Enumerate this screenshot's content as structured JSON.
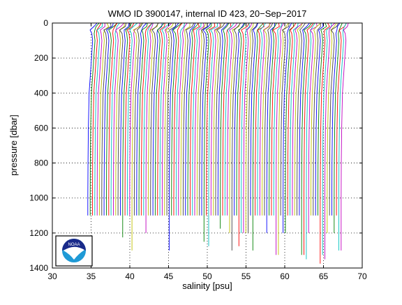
{
  "chart_data": {
    "type": "line",
    "title": "WMO ID 3900147, internal ID 423, 20−Sep−2017",
    "xlabel": "salinity [psu]",
    "ylabel": "pressure [dbar]",
    "xlim": [
      30,
      70
    ],
    "ylim": [
      1400,
      0
    ],
    "y_reversed": true,
    "grid": true,
    "xticks": [
      30,
      35,
      40,
      45,
      50,
      55,
      60,
      65,
      70
    ],
    "yticks": [
      0,
      200,
      400,
      600,
      800,
      1000,
      1200,
      1400
    ],
    "profiles": {
      "count": 110,
      "x_start": 35.0,
      "x_step": 0.3,
      "color_cycle": [
        "#0000ff",
        "#008000",
        "#ff0000",
        "#00bfbf",
        "#bf00bf",
        "#bfbf00",
        "#404040"
      ],
      "shape": [
        [
          0,
          0.75
        ],
        [
          20,
          0.55
        ],
        [
          40,
          0.0
        ],
        [
          60,
          0.1
        ],
        [
          100,
          0.2
        ],
        [
          200,
          0.05
        ],
        [
          400,
          -0.25
        ],
        [
          600,
          -0.35
        ],
        [
          800,
          -0.4
        ],
        [
          1000,
          -0.42
        ],
        [
          1100,
          -0.42
        ]
      ]
    },
    "logo": {
      "text": "NOAA",
      "colors": {
        "frame": "#000000",
        "sky": "#1a2a8a",
        "sea": "#1f9ad6",
        "gull": "#ffffff"
      }
    }
  }
}
